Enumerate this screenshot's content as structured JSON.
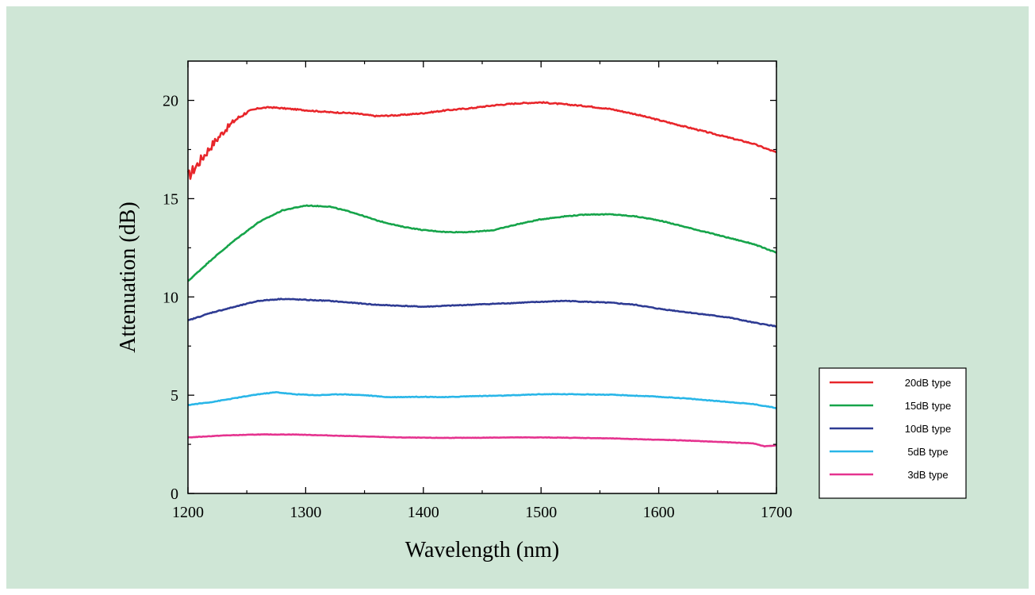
{
  "chart_data": {
    "type": "line",
    "title": "",
    "xlabel": "Wavelength (nm)",
    "ylabel": "Attenuation (dB)",
    "xlim": [
      1200,
      1700
    ],
    "ylim": [
      0,
      22
    ],
    "xticks": [
      1200,
      1300,
      1400,
      1500,
      1600,
      1700
    ],
    "yticks": [
      0,
      5,
      10,
      15,
      20
    ],
    "grid": false,
    "legend_position": "right",
    "series": [
      {
        "name": "20dB type",
        "color": "#e8262b",
        "noise": 0.55,
        "points": [
          [
            1200,
            16.1
          ],
          [
            1210,
            16.9
          ],
          [
            1220,
            17.7
          ],
          [
            1230,
            18.4
          ],
          [
            1240,
            19.0
          ],
          [
            1250,
            19.4
          ],
          [
            1260,
            19.6
          ],
          [
            1270,
            19.65
          ],
          [
            1280,
            19.6
          ],
          [
            1300,
            19.5
          ],
          [
            1320,
            19.4
          ],
          [
            1340,
            19.35
          ],
          [
            1360,
            19.2
          ],
          [
            1380,
            19.25
          ],
          [
            1400,
            19.35
          ],
          [
            1420,
            19.5
          ],
          [
            1440,
            19.6
          ],
          [
            1460,
            19.75
          ],
          [
            1480,
            19.85
          ],
          [
            1500,
            19.9
          ],
          [
            1520,
            19.8
          ],
          [
            1540,
            19.7
          ],
          [
            1560,
            19.55
          ],
          [
            1580,
            19.3
          ],
          [
            1600,
            19.0
          ],
          [
            1620,
            18.7
          ],
          [
            1640,
            18.4
          ],
          [
            1660,
            18.1
          ],
          [
            1680,
            17.8
          ],
          [
            1700,
            17.35
          ]
        ]
      },
      {
        "name": "15dB type",
        "color": "#16a44a",
        "noise": 0.04,
        "points": [
          [
            1200,
            10.8
          ],
          [
            1220,
            11.9
          ],
          [
            1240,
            12.9
          ],
          [
            1260,
            13.8
          ],
          [
            1280,
            14.4
          ],
          [
            1300,
            14.65
          ],
          [
            1320,
            14.6
          ],
          [
            1340,
            14.3
          ],
          [
            1360,
            13.9
          ],
          [
            1380,
            13.6
          ],
          [
            1400,
            13.4
          ],
          [
            1420,
            13.3
          ],
          [
            1440,
            13.3
          ],
          [
            1460,
            13.4
          ],
          [
            1480,
            13.7
          ],
          [
            1500,
            13.95
          ],
          [
            1520,
            14.1
          ],
          [
            1540,
            14.2
          ],
          [
            1560,
            14.2
          ],
          [
            1580,
            14.1
          ],
          [
            1600,
            13.9
          ],
          [
            1620,
            13.6
          ],
          [
            1640,
            13.3
          ],
          [
            1660,
            13.0
          ],
          [
            1680,
            12.7
          ],
          [
            1700,
            12.25
          ]
        ]
      },
      {
        "name": "10dB type",
        "color": "#2e3b93",
        "noise": 0.04,
        "points": [
          [
            1200,
            8.8
          ],
          [
            1220,
            9.2
          ],
          [
            1240,
            9.5
          ],
          [
            1260,
            9.8
          ],
          [
            1280,
            9.9
          ],
          [
            1300,
            9.85
          ],
          [
            1320,
            9.8
          ],
          [
            1340,
            9.7
          ],
          [
            1360,
            9.6
          ],
          [
            1380,
            9.55
          ],
          [
            1400,
            9.5
          ],
          [
            1420,
            9.55
          ],
          [
            1440,
            9.6
          ],
          [
            1460,
            9.65
          ],
          [
            1480,
            9.7
          ],
          [
            1500,
            9.75
          ],
          [
            1520,
            9.8
          ],
          [
            1540,
            9.75
          ],
          [
            1560,
            9.7
          ],
          [
            1580,
            9.6
          ],
          [
            1600,
            9.4
          ],
          [
            1620,
            9.25
          ],
          [
            1640,
            9.1
          ],
          [
            1660,
            8.95
          ],
          [
            1680,
            8.7
          ],
          [
            1700,
            8.5
          ]
        ]
      },
      {
        "name": "5dB type",
        "color": "#29b6e8",
        "noise": 0.03,
        "points": [
          [
            1200,
            4.5
          ],
          [
            1220,
            4.65
          ],
          [
            1240,
            4.85
          ],
          [
            1260,
            5.05
          ],
          [
            1275,
            5.15
          ],
          [
            1290,
            5.05
          ],
          [
            1310,
            5.0
          ],
          [
            1330,
            5.05
          ],
          [
            1350,
            5.0
          ],
          [
            1370,
            4.9
          ],
          [
            1400,
            4.92
          ],
          [
            1420,
            4.9
          ],
          [
            1440,
            4.95
          ],
          [
            1470,
            4.98
          ],
          [
            1500,
            5.05
          ],
          [
            1530,
            5.05
          ],
          [
            1560,
            5.02
          ],
          [
            1590,
            4.95
          ],
          [
            1620,
            4.85
          ],
          [
            1650,
            4.7
          ],
          [
            1680,
            4.55
          ],
          [
            1700,
            4.35
          ]
        ]
      },
      {
        "name": "3dB type",
        "color": "#e5338f",
        "noise": 0.02,
        "points": [
          [
            1200,
            2.85
          ],
          [
            1230,
            2.95
          ],
          [
            1260,
            3.0
          ],
          [
            1290,
            3.0
          ],
          [
            1320,
            2.95
          ],
          [
            1350,
            2.9
          ],
          [
            1380,
            2.85
          ],
          [
            1410,
            2.83
          ],
          [
            1440,
            2.83
          ],
          [
            1470,
            2.85
          ],
          [
            1500,
            2.85
          ],
          [
            1530,
            2.83
          ],
          [
            1560,
            2.8
          ],
          [
            1590,
            2.75
          ],
          [
            1620,
            2.7
          ],
          [
            1640,
            2.65
          ],
          [
            1660,
            2.6
          ],
          [
            1680,
            2.55
          ],
          [
            1690,
            2.4
          ],
          [
            1700,
            2.45
          ]
        ]
      }
    ]
  }
}
